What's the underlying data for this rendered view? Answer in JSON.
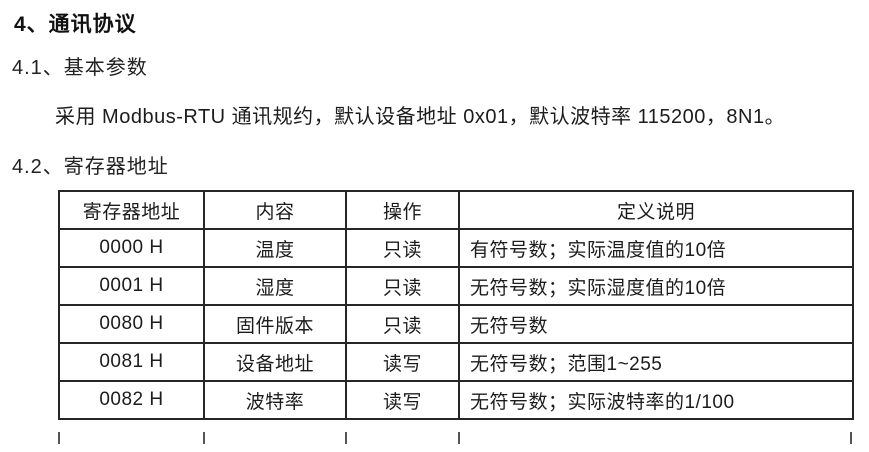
{
  "doc": {
    "section_title": "4、通讯协议",
    "sub1_title": "4.1、基本参数",
    "paragraph": "采用 Modbus-RTU 通讯规约，默认设备地址 0x01，默认波特率 115200，8N1。",
    "sub2_title": "4.2、寄存器地址"
  },
  "table": {
    "headers": [
      "寄存器地址",
      "内容",
      "操作",
      "定义说明"
    ],
    "rows": [
      [
        "0000 H",
        "温度",
        "只读",
        "有符号数；实际温度值的10倍"
      ],
      [
        "0001 H",
        "湿度",
        "只读",
        "无符号数；实际湿度值的10倍"
      ],
      [
        "0080 H",
        "固件版本",
        "只读",
        "无符号数"
      ],
      [
        "0081 H",
        "设备地址",
        "读写",
        "无符号数；范围1~255"
      ],
      [
        "0082 H",
        "波特率",
        "读写",
        "无符号数；实际波特率的1/100"
      ]
    ]
  },
  "colors": {
    "background": "#ffffff",
    "text": "#1c1c1c",
    "table_border": "#262626"
  }
}
